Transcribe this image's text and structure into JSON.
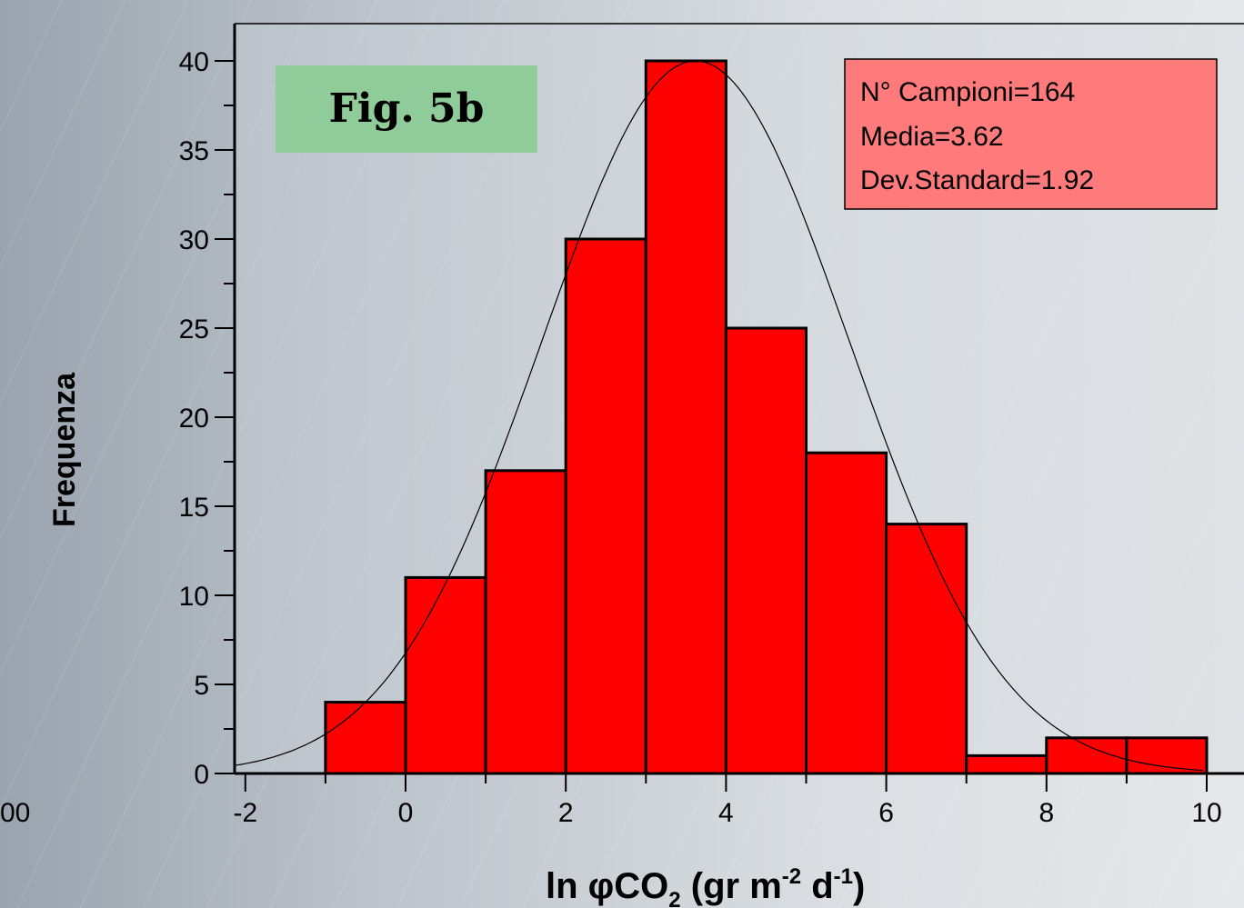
{
  "chart_data": {
    "type": "bar",
    "subtype": "histogram",
    "bins": [
      {
        "from": -1,
        "to": 0,
        "count": 4
      },
      {
        "from": 0,
        "to": 1,
        "count": 11
      },
      {
        "from": 1,
        "to": 2,
        "count": 17
      },
      {
        "from": 2,
        "to": 3,
        "count": 30
      },
      {
        "from": 3,
        "to": 4,
        "count": 40
      },
      {
        "from": 4,
        "to": 5,
        "count": 25
      },
      {
        "from": 5,
        "to": 6,
        "count": 18
      },
      {
        "from": 6,
        "to": 7,
        "count": 14
      },
      {
        "from": 7,
        "to": 8,
        "count": 1
      },
      {
        "from": 8,
        "to": 9,
        "count": 2
      },
      {
        "from": 9,
        "to": 10,
        "count": 2
      }
    ],
    "fit_curve": {
      "type": "normal",
      "mean": 3.62,
      "std": 1.92,
      "peak": 40
    },
    "x_ticks": [
      "-2",
      "0",
      "2",
      "4",
      "6",
      "8",
      "10"
    ],
    "y_ticks": [
      "0",
      "5",
      "10",
      "15",
      "20",
      "25",
      "30",
      "35",
      "40"
    ],
    "xlim": [
      -2.2,
      10.6
    ],
    "ylim": [
      0,
      42
    ],
    "ylabel": "Frequenza",
    "xlabel": {
      "main": "ln φCO",
      "sub": "2",
      "rest1": " (gr m",
      "sup1": "-2",
      "rest2": " d",
      "sup2": "-1",
      "rest3": ")"
    },
    "fig_label": "Fig. 5b",
    "stats_box": [
      "N° Campioni=164",
      "Media=3.62",
      "Dev.Standard=1.92"
    ],
    "stray_label": "00",
    "colors": {
      "bar": "#ff0000",
      "fig_box": "#8fcc9a",
      "stats_box": "#ff7b7b"
    }
  }
}
